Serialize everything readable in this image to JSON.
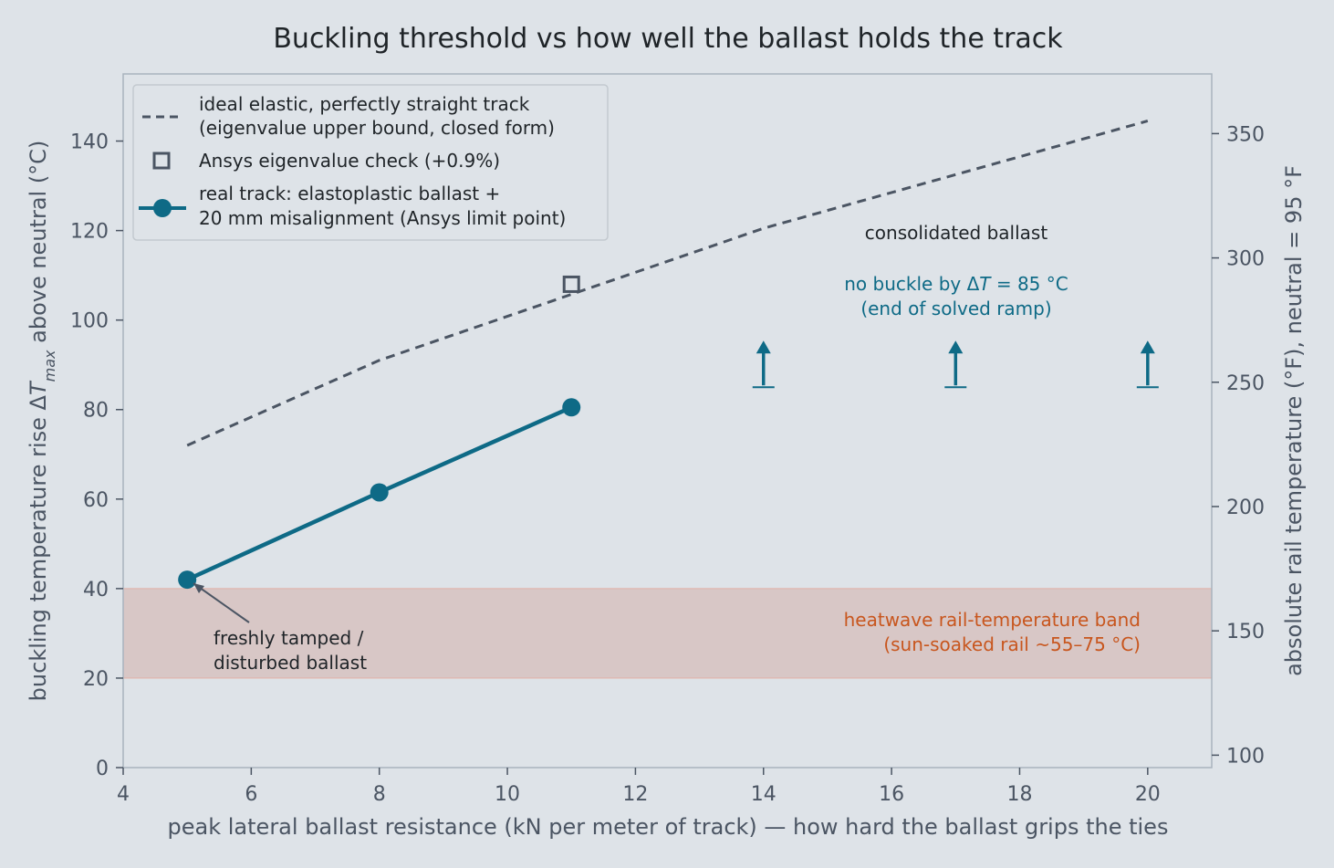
{
  "chart_data": {
    "type": "line",
    "title": "Buckling threshold vs how well the ballast holds the track",
    "xlabel": "peak lateral ballast resistance (kN per meter of track) — how hard the ballast grips the ties",
    "ylabel_prefix": "buckling temperature rise Δ",
    "ylabel_var": "T",
    "ylabel_sub": "max",
    "ylabel_suffix": " above neutral (°C)",
    "y2label": "absolute rail temperature (°F), neutral = 95 °F",
    "xlim": [
      4,
      21
    ],
    "ylim": [
      0,
      155
    ],
    "y2lim": [
      95,
      374
    ],
    "xticks": [
      4,
      6,
      8,
      10,
      12,
      14,
      16,
      18,
      20
    ],
    "yticks": [
      0,
      20,
      40,
      60,
      80,
      100,
      120,
      140
    ],
    "y2ticks": [
      100,
      150,
      200,
      250,
      300,
      350
    ],
    "grid": false,
    "legend_position": "top-left",
    "band": {
      "y_from": 20,
      "y_to": 40,
      "label_line1": "heatwave rail-temperature band",
      "label_line2": "(sun-soaked rail ~55–75 °C)"
    },
    "series": [
      {
        "name": "ideal elastic, perfectly straight track",
        "name_line2": "(eigenvalue upper bound, closed form)",
        "style": "dashed",
        "x": [
          5,
          8,
          14,
          20
        ],
        "y": [
          72,
          91,
          120.5,
          144.5
        ]
      },
      {
        "name": "Ansys eigenvalue check (+0.9%)",
        "style": "square-marker",
        "x": [
          11
        ],
        "y": [
          108
        ]
      },
      {
        "name": "real track: elastoplastic ballast +",
        "name_line2": "20 mm misalignment (Ansys limit point)",
        "style": "line-marker",
        "x": [
          5,
          8,
          11
        ],
        "y": [
          42,
          61.5,
          80.5
        ]
      }
    ],
    "no_buckle_arrows": {
      "x": [
        14,
        17,
        20
      ],
      "y_base": 85,
      "y_tip": 95
    },
    "annotations": {
      "consolidated": "consolidated ballast",
      "no_buckle_prefix": "no buckle by Δ",
      "no_buckle_var": "T",
      "no_buckle_suffix": " = 85 °C",
      "no_buckle_line2": "(end of solved ramp)",
      "fresh_line1": "freshly tamped /",
      "fresh_line2": "disturbed ballast"
    }
  },
  "colors": {
    "background": "#dee3e8",
    "teal": "#0e6a86",
    "dashed": "#4b5563",
    "band_fill": "#d8c7c6",
    "band_edge": "#e2b0a6",
    "orange": "#c8561e",
    "axis": "#a9b3bd"
  }
}
